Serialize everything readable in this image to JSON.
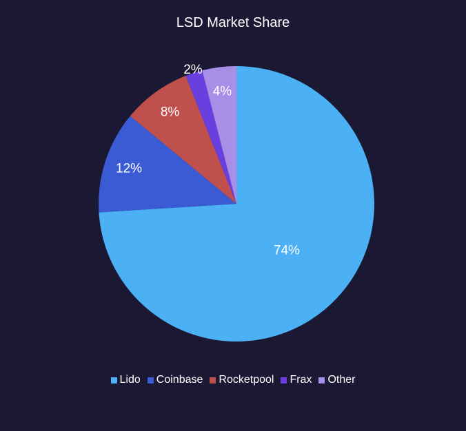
{
  "chart_data": {
    "type": "pie",
    "title": "LSD Market Share",
    "legend_position": "bottom",
    "slices": [
      {
        "label": "Lido",
        "value": 74,
        "display": "74%",
        "color": "#4cb0f5"
      },
      {
        "label": "Coinbase",
        "value": 12,
        "display": "12%",
        "color": "#3b5bd4"
      },
      {
        "label": "Rocketpool",
        "value": 8,
        "display": "8%",
        "color": "#c0504d"
      },
      {
        "label": "Frax",
        "value": 2,
        "display": "2%",
        "color": "#6a3fe0"
      },
      {
        "label": "Other",
        "value": 4,
        "display": "4%",
        "color": "#a98ee8"
      }
    ]
  }
}
